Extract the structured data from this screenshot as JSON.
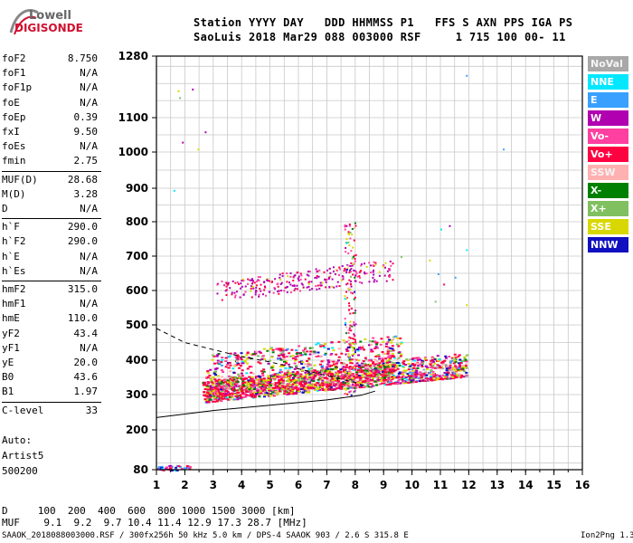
{
  "logo": {
    "line1": "Lowell",
    "line2": "DIGISONDE"
  },
  "header": {
    "row1": "Station YYYY DAY   DDD HHMMSS P1   FFS S AXN PPS IGA PS",
    "row2": "SaoLuis 2018 Mar29 088 003000 RSF     1 715 100 00- 11"
  },
  "params": [
    {
      "label": "foF2",
      "value": "8.750"
    },
    {
      "label": "foF1",
      "value": "N/A"
    },
    {
      "label": "foF1p",
      "value": "N/A"
    },
    {
      "label": "foE",
      "value": "N/A"
    },
    {
      "label": "foEp",
      "value": "0.39"
    },
    {
      "label": "fxI",
      "value": "9.50"
    },
    {
      "label": "foEs",
      "value": "N/A"
    },
    {
      "label": "fmin",
      "value": "2.75"
    },
    {
      "label": "MUF(D)",
      "value": "28.68"
    },
    {
      "label": "M(D)",
      "value": "3.28"
    },
    {
      "label": "D",
      "value": "N/A"
    },
    {
      "label": "h`F",
      "value": "290.0"
    },
    {
      "label": "h`F2",
      "value": "290.0"
    },
    {
      "label": "h`E",
      "value": "N/A"
    },
    {
      "label": "h`Es",
      "value": "N/A"
    },
    {
      "label": "hmF2",
      "value": "315.0"
    },
    {
      "label": "hmF1",
      "value": "N/A"
    },
    {
      "label": "hmE",
      "value": "110.0"
    },
    {
      "label": "yF2",
      "value": "43.4"
    },
    {
      "label": "yF1",
      "value": "N/A"
    },
    {
      "label": "yE",
      "value": "20.0"
    },
    {
      "label": "B0",
      "value": "43.6"
    },
    {
      "label": "B1",
      "value": "1.97"
    },
    {
      "label": "C-level",
      "value": "33"
    }
  ],
  "auto": {
    "line1": "Auto:",
    "line2": "Artist5",
    "line3": "500200"
  },
  "muf_table": {
    "d_line": "D     100  200  400  600  800 1000 1500 3000 [km]",
    "muf_line": "MUF    9.1  9.2  9.7 10.4 11.4 12.9 17.3 28.7 [MHz]"
  },
  "footer": {
    "left": "SAAOK_2018088003000.RSF / 300fx256h 50 kHz 5.0 km / DPS-4 SAAOK 903 / 2.6 S 315.8 E",
    "right": "Ion2Png 1.3.17"
  },
  "legend": [
    {
      "label": "NoVal",
      "color": "#a8a8a8"
    },
    {
      "label": "NNE",
      "color": "#00e8ff"
    },
    {
      "label": "E",
      "color": "#3aa0ff"
    },
    {
      "label": "W",
      "color": "#b000b0"
    },
    {
      "label": "Vo-",
      "color": "#ff40a0"
    },
    {
      "label": "Vo+",
      "color": "#ff0040"
    },
    {
      "label": "SSW",
      "color": "#ffb0b0"
    },
    {
      "label": "X-",
      "color": "#008000"
    },
    {
      "label": "X+",
      "color": "#80c060"
    },
    {
      "label": "SSE",
      "color": "#d8d800"
    },
    {
      "label": "NNW",
      "color": "#1010c0"
    }
  ],
  "chart_data": {
    "type": "scatter",
    "title": "",
    "xlabel": "",
    "ylabel": "",
    "xlim": [
      1,
      16
    ],
    "ylim": [
      80,
      1280
    ],
    "x_ticks": [
      "1",
      "2",
      "3",
      "4",
      "5",
      "6",
      "7",
      "8",
      "9",
      "10",
      "11",
      "12",
      "13",
      "14",
      "15",
      "16"
    ],
    "y_ticks": [
      "80",
      "200",
      "300",
      "400",
      "500",
      "600",
      "700",
      "800",
      "900",
      "1000",
      "1100",
      "1280"
    ],
    "grid": true,
    "height_scale": "nonlinear (ionogram virtual height)",
    "clusters": [
      {
        "name": "F-trace",
        "fmin": 2.7,
        "fmax": 12.2,
        "hmin": 280,
        "hmax": 520,
        "dominant": "Vo+"
      },
      {
        "name": "2F-trace",
        "fmin": 3.0,
        "fmax": 9.5,
        "hmin": 560,
        "hmax": 720,
        "dominant": "W"
      },
      {
        "name": "E-region",
        "fmin": 1.0,
        "fmax": 2.2,
        "hmin": 80,
        "hmax": 95,
        "dominant": "E"
      }
    ],
    "profile_curve": {
      "series": [
        {
          "name": "profile-solid",
          "points": [
            [
              1.0,
              235
            ],
            [
              3.0,
              255
            ],
            [
              5.0,
              270
            ],
            [
              7.0,
              285
            ],
            [
              8.2,
              298
            ],
            [
              8.7,
              310
            ]
          ]
        },
        {
          "name": "profile-dashed",
          "points": [
            [
              1.0,
              490
            ],
            [
              2.0,
              450
            ],
            [
              3.0,
              430
            ],
            [
              4.0,
              410
            ],
            [
              5.0,
              395
            ],
            [
              6.0,
              375
            ],
            [
              7.0,
              355
            ],
            [
              8.0,
              335
            ],
            [
              8.6,
              320
            ]
          ]
        }
      ]
    }
  }
}
